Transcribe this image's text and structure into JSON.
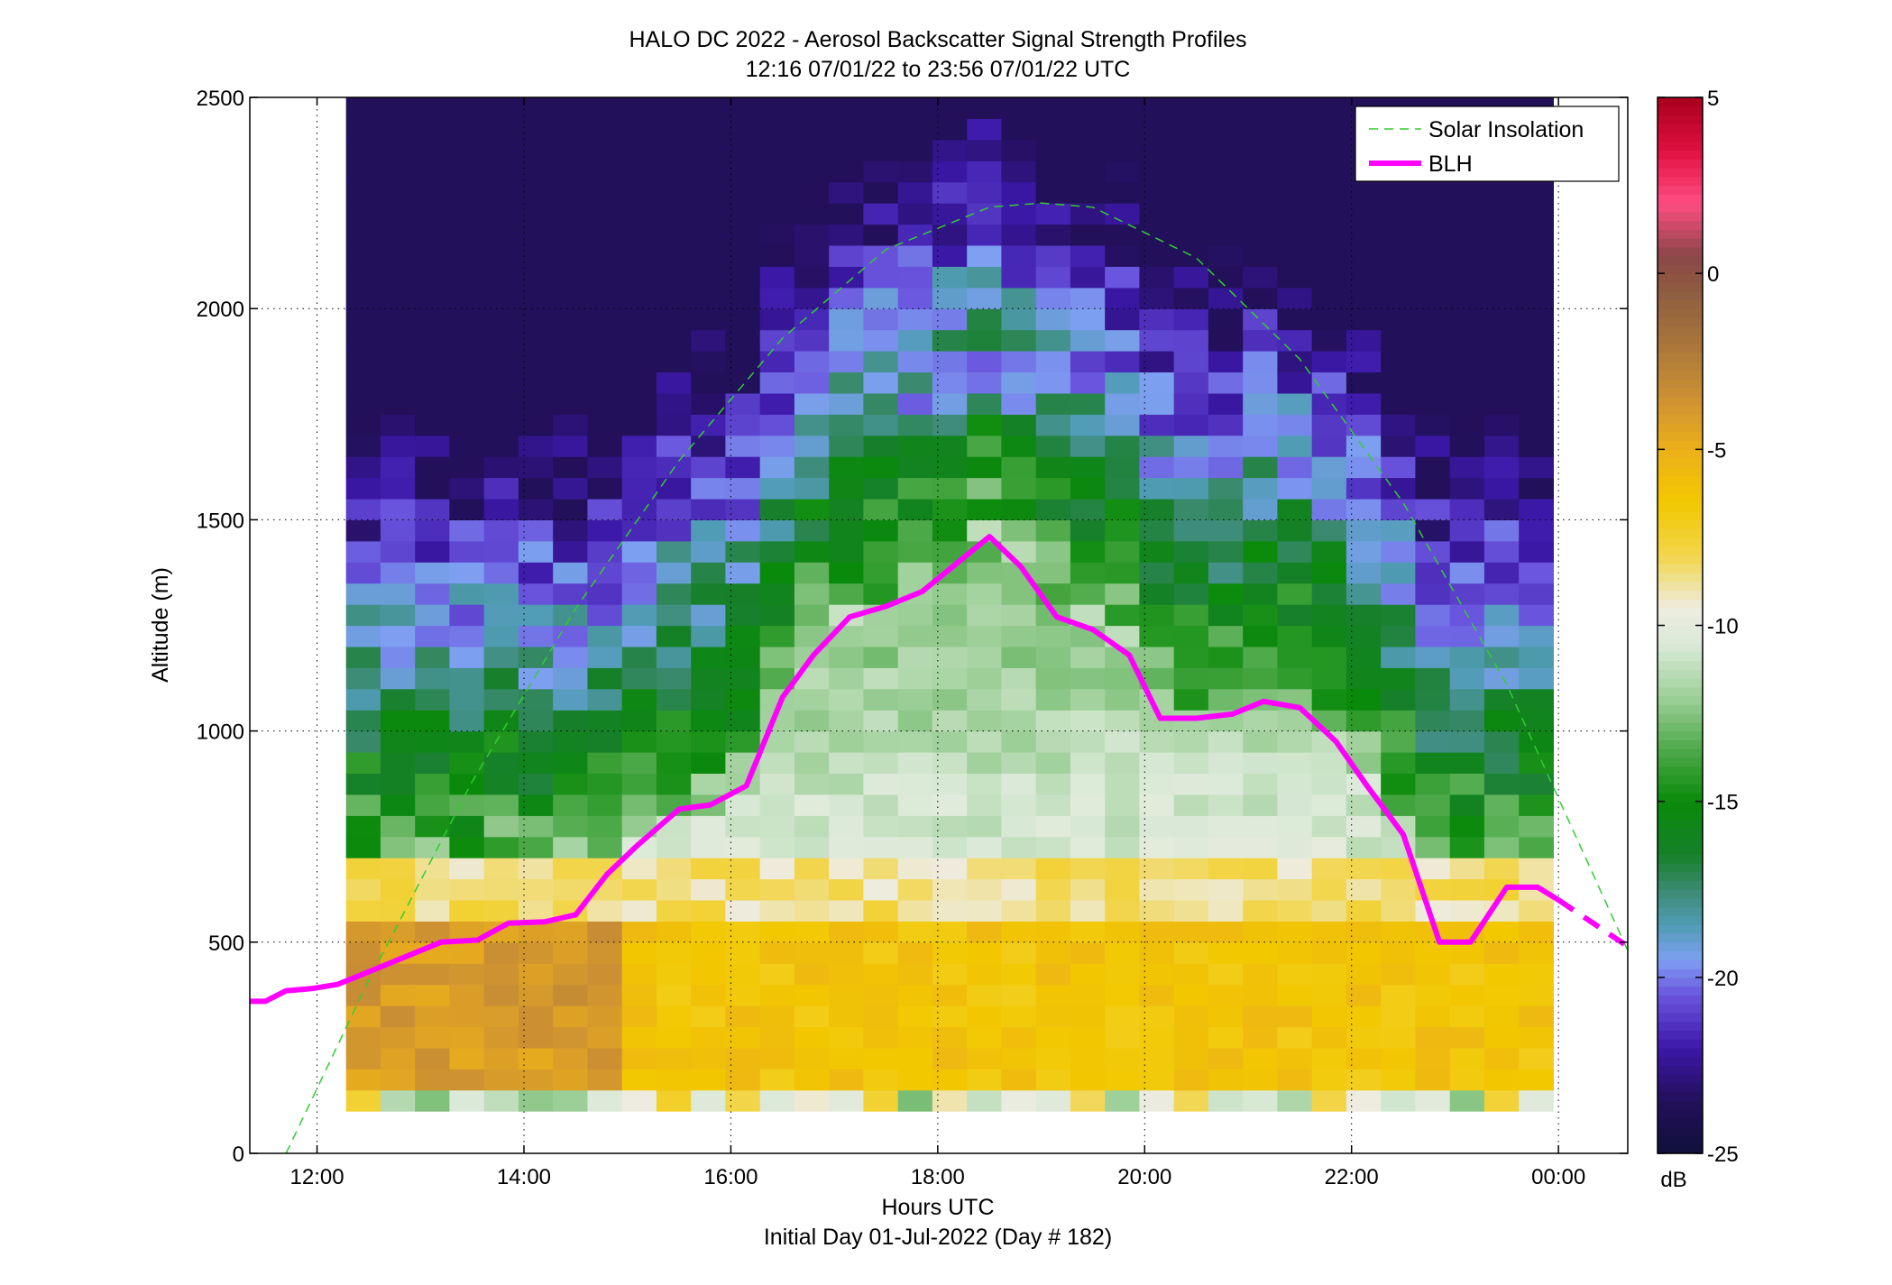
{
  "chart_data": {
    "type": "heatmap",
    "title": "HALO DC 2022 - Aerosol Backscatter Signal Strength Profiles",
    "subtitle": "12:16 07/01/22 to 23:56 07/01/22  UTC",
    "xlabel": "Hours UTC",
    "xlabel2": "Initial Day 01-Jul-2022 (Day # 182)",
    "ylabel": "Altitude (m)",
    "xlim": [
      11.35,
      24.67
    ],
    "ylim": [
      0,
      2500
    ],
    "x_ticks": [
      12,
      14,
      16,
      18,
      20,
      22,
      24
    ],
    "x_tick_labels": [
      "12:00",
      "14:00",
      "16:00",
      "18:00",
      "20:00",
      "22:00",
      "00:00"
    ],
    "y_ticks": [
      0,
      500,
      1000,
      1500,
      2000,
      2500
    ],
    "y_tick_labels": [
      "0",
      "500",
      "1000",
      "1500",
      "2000",
      "2500"
    ],
    "grid": true,
    "legend_position": "top-right",
    "colorbar": {
      "label": "dB",
      "range": [
        -25,
        5
      ],
      "ticks": [
        5,
        0,
        -5,
        -10,
        -15,
        -20,
        -25
      ],
      "tick_labels": [
        "5",
        "0",
        "-5",
        "-10",
        "-15",
        "-20",
        "-25"
      ]
    },
    "heatmap": {
      "x_start": 12.28,
      "x_end": 23.95,
      "n_cols": 35,
      "y_start": 100,
      "y_end": 2500,
      "bin_height": 50,
      "note_zones_db": [
        {
          "alt_range": [
            100,
            150
          ],
          "value": -10
        },
        {
          "alt_range": [
            150,
            550
          ],
          "value": -6
        },
        {
          "alt_range": [
            550,
            700
          ],
          "value": -9
        },
        {
          "alt_range": [
            700,
            1000
          ],
          "value": -12
        },
        {
          "alt_range": [
            1000,
            1700
          ],
          "value": -16
        },
        {
          "alt_range": [
            1700,
            2500
          ],
          "value": -20
        }
      ]
    },
    "series": [
      {
        "name": "Solar Insolation",
        "style": "dashed",
        "color": "#33cc33",
        "x": [
          11.7,
          12.5,
          13.5,
          14.5,
          15.5,
          16.5,
          17.5,
          18.5,
          19.0,
          19.5,
          20.5,
          21.5,
          22.5,
          23.5,
          24.67
        ],
        "y": [
          0,
          410,
          880,
          1290,
          1640,
          1930,
          2140,
          2240,
          2250,
          2240,
          2120,
          1880,
          1540,
          1110,
          480
        ]
      },
      {
        "name": "BLH",
        "style": "solid",
        "color": "#ff00ff",
        "x": [
          11.35,
          11.5,
          11.7,
          11.95,
          12.2,
          12.5,
          12.85,
          13.2,
          13.55,
          13.85,
          14.2,
          14.5,
          14.8,
          15.1,
          15.5,
          15.8,
          16.15,
          16.5,
          16.8,
          17.15,
          17.5,
          17.85,
          18.2,
          18.5,
          18.8,
          19.15,
          19.5,
          19.85,
          20.15,
          20.5,
          20.85,
          21.15,
          21.5,
          21.85,
          22.15,
          22.5,
          22.85,
          23.15,
          23.5,
          23.8,
          24.0
        ],
        "y": [
          360,
          360,
          385,
          390,
          400,
          430,
          465,
          500,
          505,
          545,
          548,
          565,
          660,
          730,
          815,
          825,
          870,
          1080,
          1180,
          1270,
          1295,
          1330,
          1400,
          1460,
          1390,
          1270,
          1240,
          1180,
          1030,
          1030,
          1040,
          1070,
          1055,
          975,
          870,
          755,
          500,
          500,
          630,
          630,
          600
        ]
      },
      {
        "name": "BLH-extension",
        "style": "dashed",
        "color": "#ff00ff",
        "x": [
          24.0,
          24.67
        ],
        "y": [
          600,
          490
        ]
      }
    ]
  }
}
